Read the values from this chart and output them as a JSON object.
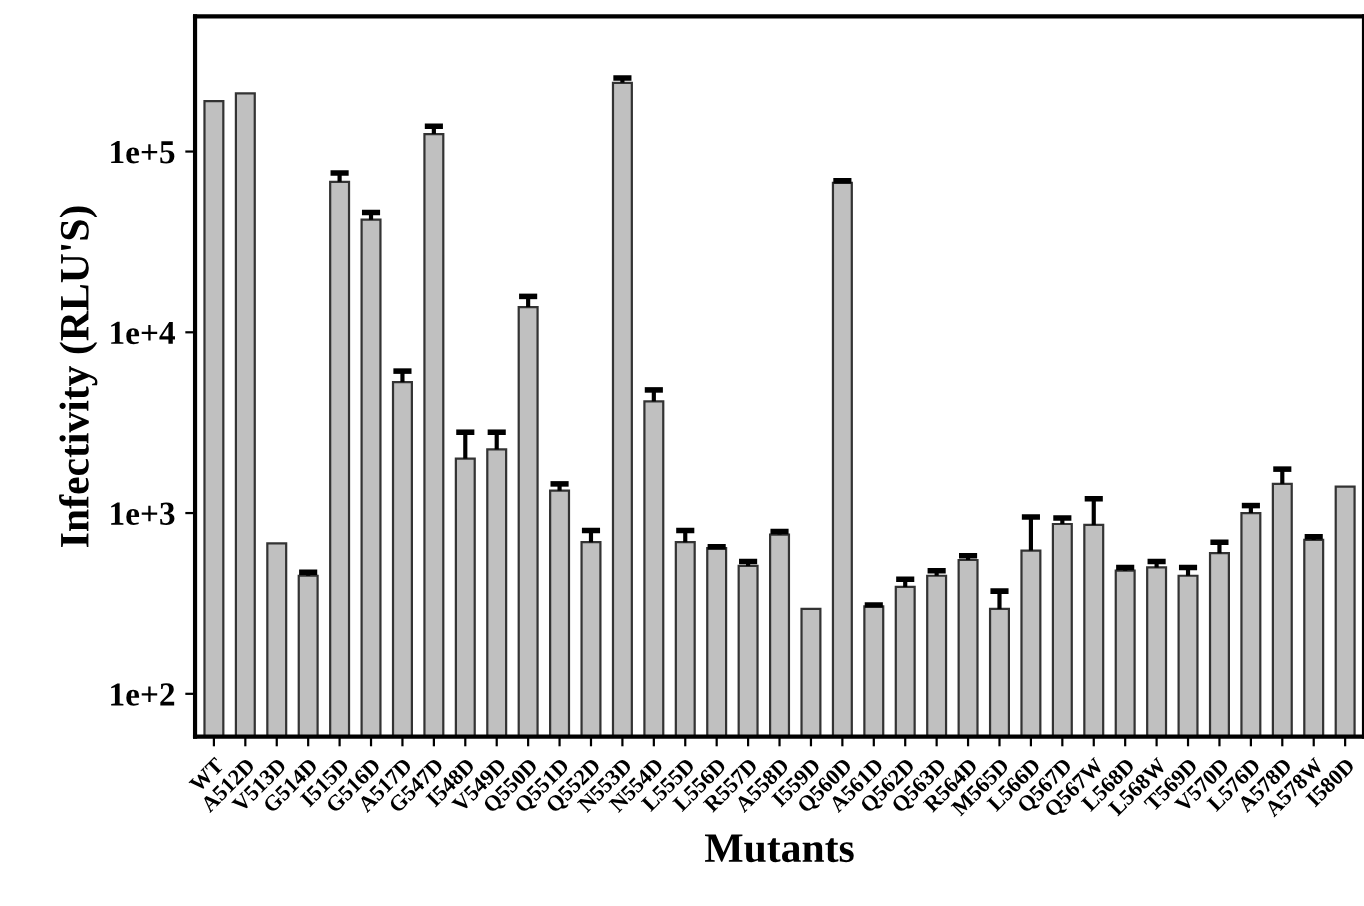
{
  "chart_data": {
    "type": "bar",
    "xlabel": "Mutants",
    "ylabel": "Infectivity (RLU'S)",
    "categories": [
      "WT",
      "A512D",
      "V513D",
      "G514D",
      "I515D",
      "G516D",
      "A517D",
      "G547D",
      "I548D",
      "V549D",
      "Q550D",
      "Q551D",
      "Q552D",
      "N553D",
      "N554D",
      "L555D",
      "L556D",
      "R557D",
      "A558D",
      "I559D",
      "Q560D",
      "A561D",
      "Q562D",
      "Q563D",
      "R564D",
      "M565D",
      "L566D",
      "Q567D",
      "Q567W",
      "L568D",
      "L568W",
      "T569D",
      "V570D",
      "L576D",
      "A578D",
      "A578W",
      "I580D"
    ],
    "series": [
      {
        "color": "#c0c0c0",
        "values": [
          190000,
          210000,
          680,
          450,
          68000,
          42000,
          5300,
          125000,
          2000,
          2250,
          13800,
          1330,
          690,
          240000,
          4150,
          690,
          640,
          510,
          760,
          295,
          67000,
          305,
          390,
          450,
          550,
          295,
          620,
          870,
          860,
          480,
          500,
          450,
          600,
          1000,
          1450,
          710,
          1400
        ],
        "errors": [
          null,
          null,
          null,
          [
            450,
            470
          ],
          [
            68000,
            76000
          ],
          [
            42000,
            46000
          ],
          [
            5300,
            6100
          ],
          [
            125000,
            138000
          ],
          [
            2000,
            2800
          ],
          [
            2250,
            2800
          ],
          [
            13800,
            15800
          ],
          [
            1330,
            1450
          ],
          [
            690,
            800
          ],
          [
            240000,
            255000
          ],
          [
            4150,
            4800
          ],
          [
            690,
            800
          ],
          [
            640,
            650
          ],
          [
            510,
            540
          ],
          [
            760,
            790
          ],
          null,
          [
            67000,
            69000
          ],
          [
            305,
            310
          ],
          [
            390,
            430
          ],
          [
            450,
            480
          ],
          [
            550,
            580
          ],
          [
            295,
            370
          ],
          [
            620,
            950
          ],
          [
            870,
            940
          ],
          [
            860,
            1200
          ],
          [
            480,
            500
          ],
          [
            500,
            540
          ],
          [
            450,
            500
          ],
          [
            600,
            690
          ],
          [
            1000,
            1100
          ],
          [
            1450,
            1750
          ],
          [
            710,
            740
          ],
          null
        ]
      }
    ],
    "log": true,
    "ylim": [
      58,
      560000
    ],
    "yticks": [
      {
        "value": 100,
        "label": "1e+2"
      },
      {
        "value": 1000,
        "label": "1e+3"
      },
      {
        "value": 10000,
        "label": "1e+4"
      },
      {
        "value": 100000,
        "label": "1e+5"
      }
    ],
    "grid": false,
    "legend": false
  }
}
